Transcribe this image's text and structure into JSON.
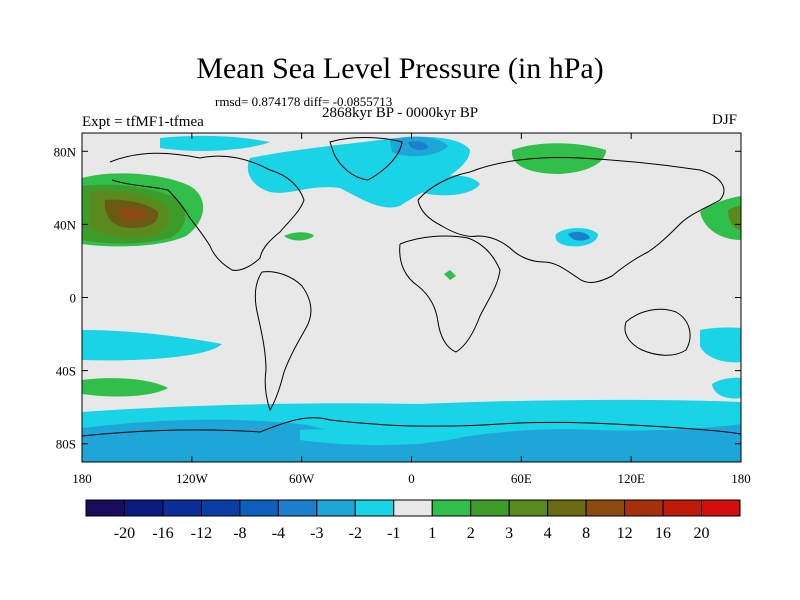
{
  "title": "Mean Sea Level Pressure (in hPa)",
  "stats_line": "rmsd= 0.874178  diff= -0.0855713",
  "period": "2868kyr BP - 0000kyr BP",
  "experiment": "Expt = tfMF1-tfmea",
  "season": "DJF",
  "chart_data": {
    "type": "heatmap",
    "title": "Mean Sea Level Pressure (in hPa)",
    "x_axis": {
      "range": [
        -180,
        180
      ],
      "ticks": [
        -180,
        -120,
        -60,
        0,
        60,
        120,
        180
      ],
      "tick_labels": [
        "180",
        "120W",
        "60W",
        "0",
        "60E",
        "120E",
        "180"
      ]
    },
    "y_axis": {
      "range": [
        -90,
        90
      ],
      "ticks": [
        80,
        40,
        0,
        -40,
        -80
      ],
      "tick_labels": [
        "80N",
        "40N",
        "0",
        "40S",
        "80S"
      ]
    },
    "colorbar": {
      "labels": [
        "-20",
        "-16",
        "-12",
        "-8",
        "-4",
        "-3",
        "-2",
        "-1",
        "1",
        "2",
        "3",
        "4",
        "8",
        "12",
        "16",
        "20"
      ],
      "colors": [
        "#1a0d5c",
        "#0a1a80",
        "#0b2d99",
        "#0a3ea6",
        "#0d5fbf",
        "#1b7fcc",
        "#1fa6d9",
        "#19d3e6",
        "#e8e8e8",
        "#2fbf4a",
        "#3d9b2a",
        "#5a8a1e",
        "#6b6b14",
        "#8c4a10",
        "#a6300d",
        "#c01a0b",
        "#d40d0d"
      ]
    },
    "features": [
      {
        "name": "north-pacific-positive",
        "sign": "positive",
        "max_class": "8"
      },
      {
        "name": "siberia-positive",
        "sign": "positive",
        "max_class": "2"
      },
      {
        "name": "greenland-negative",
        "sign": "negative",
        "min_class": "-3"
      },
      {
        "name": "tibet-negative",
        "sign": "negative",
        "min_class": "-4"
      },
      {
        "name": "southern-ocean-negative-band",
        "sign": "negative",
        "min_class": "-4"
      },
      {
        "name": "south-pacific-positive",
        "sign": "positive",
        "max_class": "2"
      }
    ]
  }
}
